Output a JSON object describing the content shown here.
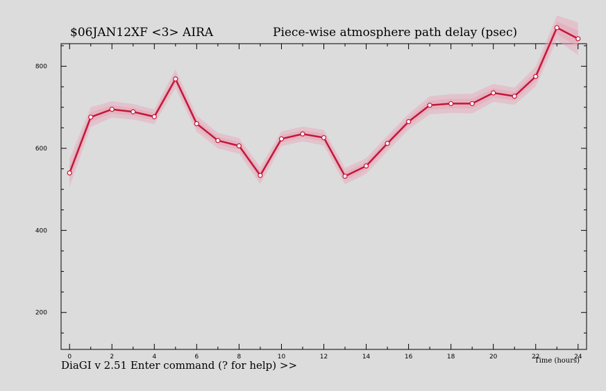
{
  "window": {
    "status_line": "DiaGI v 2.51  Enter command (? for help) >>"
  },
  "chart_data": {
    "type": "line",
    "title_left": "$06JAN12XF <3>   AIRA",
    "title_right": "Piece-wise atmosphere path delay (psec)",
    "xlabel": "Time (hours)",
    "ylabel": "",
    "xlim": [
      -0.4,
      24.4
    ],
    "ylim": [
      110,
      855
    ],
    "x_ticks": [
      0,
      2,
      4,
      6,
      8,
      10,
      12,
      14,
      16,
      18,
      20,
      22,
      24
    ],
    "y_ticks": [
      200,
      400,
      600,
      800
    ],
    "grid": false,
    "series": [
      {
        "x": [
          0,
          1,
          2,
          3,
          4,
          5,
          6,
          7,
          8,
          9,
          10,
          11,
          12,
          13,
          14,
          15,
          16,
          17,
          18,
          19,
          20,
          21,
          22,
          23,
          24
        ],
        "values": [
          540,
          676,
          695,
          689,
          677,
          769,
          660,
          619,
          606,
          534,
          623,
          635,
          626,
          532,
          557,
          612,
          665,
          705,
          709,
          709,
          735,
          727,
          775,
          894,
          867
        ],
        "error": [
          35,
          24,
          20,
          19,
          18,
          23,
          20,
          19,
          19,
          21,
          18,
          18,
          19,
          20,
          19,
          19,
          19,
          22,
          23,
          24,
          22,
          21,
          24,
          30,
          40
        ]
      }
    ],
    "colors": {
      "line": "#c01838",
      "band": "#e8a4b8",
      "marker_fill": "#ffffff",
      "axis": "#000000"
    }
  }
}
